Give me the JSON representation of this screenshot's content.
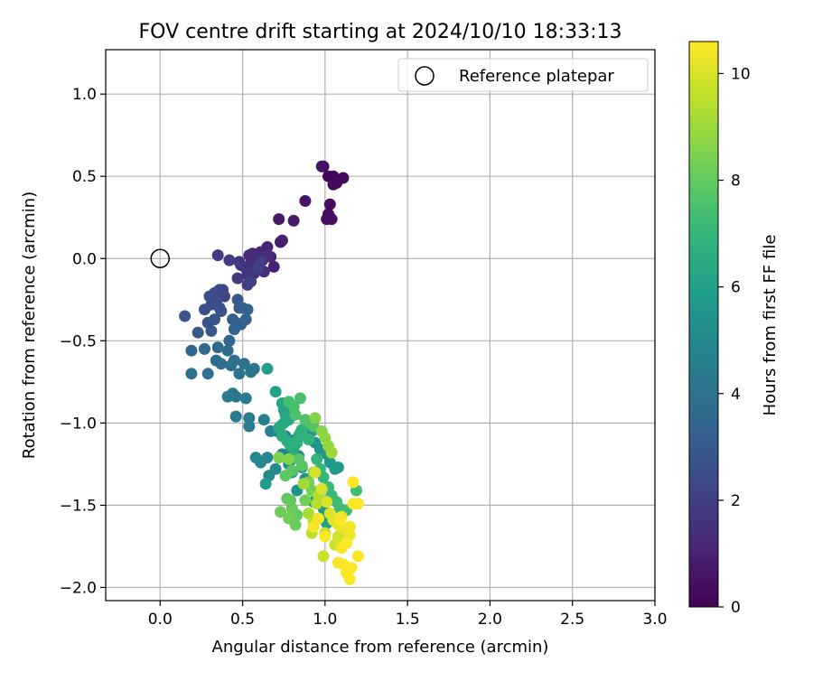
{
  "chart_data": {
    "type": "scatter",
    "title": "FOV centre drift starting at 2024/10/10 18:33:13",
    "xlabel": "Angular distance from reference (arcmin)",
    "ylabel": "Rotation from reference (arcmin)",
    "xlim": [
      -0.33,
      3.0
    ],
    "ylim": [
      -2.08,
      1.27
    ],
    "xticks": [
      0.0,
      0.5,
      1.0,
      1.5,
      2.0,
      2.5,
      3.0
    ],
    "xtick_labels": [
      "0.0",
      "0.5",
      "1.0",
      "1.5",
      "2.0",
      "2.5",
      "3.0"
    ],
    "yticks": [
      -2.0,
      -1.5,
      -1.0,
      -0.5,
      0.0,
      0.5,
      1.0
    ],
    "ytick_labels": [
      "−2.0",
      "−1.5",
      "−1.0",
      "−0.5",
      "0.0",
      "0.5",
      "1.0"
    ],
    "grid": true,
    "legend": {
      "position": "upper right",
      "entries": [
        "Reference platepar"
      ]
    },
    "reference_point": {
      "x": 0.0,
      "y": 0.0
    },
    "colorbar": {
      "label": "Hours from first FF file",
      "range": [
        0,
        10.6
      ],
      "ticks": [
        0,
        2,
        4,
        6,
        8,
        10
      ],
      "tick_labels": [
        "0",
        "2",
        "4",
        "6",
        "8",
        "10"
      ],
      "colormap": "viridis",
      "stops": [
        "#440154",
        "#482878",
        "#3e4989",
        "#31688e",
        "#26828e",
        "#1f9e89",
        "#35b779",
        "#6ece58",
        "#b5de2b",
        "#fde725"
      ]
    },
    "points": [
      [
        0.99,
        0.56,
        0.05
      ],
      [
        1.02,
        0.5,
        0.1
      ],
      [
        1.05,
        0.5,
        0.12
      ],
      [
        1.07,
        0.46,
        0.15
      ],
      [
        1.11,
        0.49,
        0.2
      ],
      [
        1.05,
        0.45,
        0.25
      ],
      [
        1.03,
        0.33,
        0.3
      ],
      [
        1.02,
        0.27,
        0.33
      ],
      [
        1.04,
        0.24,
        0.38
      ],
      [
        1.01,
        0.24,
        0.42
      ],
      [
        1.03,
        0.25,
        0.45
      ],
      [
        0.98,
        0.56,
        0.5
      ],
      [
        0.88,
        0.35,
        0.55
      ],
      [
        0.72,
        0.24,
        0.7
      ],
      [
        0.81,
        0.23,
        0.8
      ],
      [
        0.73,
        0.1,
        0.85
      ],
      [
        0.74,
        0.11,
        0.9
      ],
      [
        0.69,
        -0.05,
        0.95
      ],
      [
        0.65,
        0.07,
        1.0
      ],
      [
        0.67,
        0.01,
        1.05
      ],
      [
        0.61,
        0.04,
        1.1
      ],
      [
        0.62,
        -0.01,
        1.15
      ],
      [
        0.59,
        -0.02,
        1.2
      ],
      [
        0.56,
        0.03,
        1.25
      ],
      [
        0.54,
        0.02,
        1.3
      ],
      [
        0.6,
        -0.03,
        1.32
      ],
      [
        0.65,
        0.02,
        1.35
      ],
      [
        0.63,
        -0.08,
        1.38
      ],
      [
        0.58,
        0.01,
        1.4
      ],
      [
        0.55,
        -0.03,
        1.45
      ],
      [
        0.52,
        -0.06,
        1.5
      ],
      [
        0.49,
        -0.04,
        1.55
      ],
      [
        0.57,
        -0.09,
        1.6
      ],
      [
        0.53,
        -0.1,
        1.65
      ],
      [
        0.47,
        -0.12,
        1.7
      ],
      [
        0.48,
        -0.02,
        1.75
      ],
      [
        0.42,
        -0.01,
        1.8
      ],
      [
        0.35,
        0.02,
        1.85
      ],
      [
        0.53,
        -0.16,
        1.9
      ],
      [
        0.61,
        -0.02,
        1.95
      ],
      [
        0.59,
        -0.06,
        2.0
      ],
      [
        0.55,
        -0.14,
        2.1
      ],
      [
        0.38,
        -0.19,
        2.2
      ],
      [
        0.36,
        -0.19,
        2.25
      ],
      [
        0.39,
        -0.23,
        2.3
      ],
      [
        0.35,
        -0.24,
        2.35
      ],
      [
        0.33,
        -0.21,
        2.4
      ],
      [
        0.31,
        -0.28,
        2.45
      ],
      [
        0.34,
        -0.28,
        2.5
      ],
      [
        0.3,
        -0.23,
        2.55
      ],
      [
        0.27,
        -0.31,
        2.6
      ],
      [
        0.36,
        -0.3,
        2.65
      ],
      [
        0.37,
        -0.32,
        2.7
      ],
      [
        0.29,
        -0.39,
        2.75
      ],
      [
        0.15,
        -0.35,
        2.8
      ],
      [
        0.33,
        -0.37,
        2.85
      ],
      [
        0.31,
        -0.44,
        2.9
      ],
      [
        0.23,
        -0.45,
        2.95
      ],
      [
        0.47,
        -0.25,
        3.0
      ],
      [
        0.48,
        -0.3,
        3.05
      ],
      [
        0.44,
        -0.37,
        3.1
      ],
      [
        0.46,
        -0.39,
        3.15
      ],
      [
        0.49,
        -0.4,
        3.2
      ],
      [
        0.5,
        -0.3,
        3.25
      ],
      [
        0.52,
        -0.37,
        3.3
      ],
      [
        0.53,
        -0.31,
        3.35
      ],
      [
        0.45,
        -0.43,
        3.4
      ],
      [
        0.42,
        -0.5,
        3.45
      ],
      [
        0.19,
        -0.56,
        3.5
      ],
      [
        0.27,
        -0.55,
        3.55
      ],
      [
        0.35,
        -0.54,
        3.6
      ],
      [
        0.41,
        -0.56,
        3.65
      ],
      [
        0.34,
        -0.62,
        3.7
      ],
      [
        0.37,
        -0.64,
        3.75
      ],
      [
        0.45,
        -0.62,
        3.8
      ],
      [
        0.43,
        -0.65,
        3.85
      ],
      [
        0.29,
        -0.7,
        3.9
      ],
      [
        0.19,
        -0.7,
        3.95
      ],
      [
        0.51,
        -0.64,
        4.0
      ],
      [
        0.48,
        -0.7,
        4.05
      ],
      [
        0.55,
        -0.69,
        4.1
      ],
      [
        0.57,
        -0.67,
        4.15
      ],
      [
        0.44,
        -0.82,
        4.2
      ],
      [
        0.46,
        -0.84,
        4.25
      ],
      [
        0.41,
        -0.84,
        4.3
      ],
      [
        0.52,
        -0.85,
        4.35
      ],
      [
        0.46,
        -0.96,
        4.4
      ],
      [
        0.54,
        -0.97,
        4.45
      ],
      [
        0.54,
        -1.02,
        4.5
      ],
      [
        0.63,
        -0.98,
        4.55
      ],
      [
        0.71,
        -1.05,
        4.6
      ],
      [
        0.67,
        -1.05,
        4.65
      ],
      [
        0.76,
        -1.08,
        4.7
      ],
      [
        0.82,
        -1.1,
        4.75
      ],
      [
        0.79,
        -1.17,
        4.8
      ],
      [
        0.74,
        -1.19,
        4.85
      ],
      [
        0.65,
        -1.21,
        4.9
      ],
      [
        0.58,
        -1.21,
        4.95
      ],
      [
        0.61,
        -1.24,
        5.0
      ],
      [
        0.7,
        -1.28,
        5.05
      ],
      [
        0.66,
        -1.32,
        5.1
      ],
      [
        0.78,
        -1.25,
        5.15
      ],
      [
        0.84,
        -1.2,
        5.2
      ],
      [
        0.8,
        -1.3,
        5.25
      ],
      [
        0.86,
        -1.27,
        5.3
      ],
      [
        0.88,
        -1.34,
        5.35
      ],
      [
        0.83,
        -1.41,
        5.4
      ],
      [
        0.92,
        -1.05,
        5.45
      ],
      [
        0.94,
        -1.12,
        5.5
      ],
      [
        0.97,
        -1.16,
        5.55
      ],
      [
        1.01,
        -1.19,
        5.6
      ],
      [
        1.03,
        -1.24,
        5.65
      ],
      [
        1.06,
        -1.28,
        5.7
      ],
      [
        1.08,
        -1.27,
        5.75
      ],
      [
        0.64,
        -1.37,
        5.8
      ],
      [
        0.99,
        -1.52,
        5.85
      ],
      [
        0.97,
        -1.58,
        5.9
      ],
      [
        0.93,
        -1.48,
        5.95
      ],
      [
        1.01,
        -1.61,
        6.0
      ],
      [
        0.65,
        -0.67,
        6.05
      ],
      [
        0.7,
        -0.81,
        6.1
      ],
      [
        0.74,
        -0.88,
        6.15
      ],
      [
        0.75,
        -0.92,
        6.2
      ],
      [
        0.76,
        -0.95,
        6.25
      ],
      [
        0.78,
        -0.98,
        6.3
      ],
      [
        0.75,
        -1.0,
        6.35
      ],
      [
        0.73,
        -1.02,
        6.4
      ],
      [
        0.72,
        -1.03,
        6.45
      ],
      [
        0.74,
        -1.08,
        6.5
      ],
      [
        0.77,
        -1.11,
        6.55
      ],
      [
        0.79,
        -1.14,
        6.6
      ],
      [
        0.81,
        -1.16,
        6.65
      ],
      [
        0.83,
        -1.12,
        6.7
      ],
      [
        0.84,
        -1.08,
        6.75
      ],
      [
        0.85,
        -1.06,
        6.8
      ],
      [
        0.86,
        -1.04,
        6.85
      ],
      [
        0.9,
        -1.1,
        6.9
      ],
      [
        0.95,
        -1.22,
        6.95
      ],
      [
        0.97,
        -1.28,
        7.0
      ],
      [
        0.99,
        -1.33,
        7.05
      ],
      [
        1.02,
        -1.39,
        7.1
      ],
      [
        1.04,
        -1.44,
        7.15
      ],
      [
        1.07,
        -1.48,
        7.2
      ],
      [
        1.09,
        -1.52,
        7.25
      ],
      [
        1.13,
        -1.53,
        7.3
      ],
      [
        1.19,
        -1.41,
        7.35
      ],
      [
        0.78,
        -0.87,
        7.4
      ],
      [
        0.81,
        -0.9,
        7.45
      ],
      [
        0.85,
        -0.85,
        7.5
      ],
      [
        0.82,
        -0.95,
        7.55
      ],
      [
        0.88,
        -0.98,
        7.6
      ],
      [
        0.91,
        -1.0,
        7.65
      ],
      [
        0.93,
        -1.02,
        7.7
      ],
      [
        0.84,
        -1.22,
        7.75
      ],
      [
        0.86,
        -1.26,
        7.8
      ],
      [
        0.8,
        -1.29,
        7.85
      ],
      [
        0.76,
        -1.32,
        7.9
      ],
      [
        0.77,
        -1.46,
        7.95
      ],
      [
        0.79,
        -1.47,
        8.0
      ],
      [
        0.8,
        -1.52,
        8.05
      ],
      [
        0.83,
        -1.56,
        8.1
      ],
      [
        0.82,
        -1.62,
        8.15
      ],
      [
        0.73,
        -1.54,
        8.2
      ],
      [
        0.78,
        -1.58,
        8.25
      ],
      [
        0.88,
        -1.47,
        8.3
      ],
      [
        0.9,
        -1.36,
        8.35
      ],
      [
        0.92,
        -1.41,
        8.4
      ],
      [
        0.93,
        -1.3,
        8.45
      ],
      [
        0.72,
        -1.21,
        8.5
      ],
      [
        0.78,
        -1.22,
        8.55
      ],
      [
        0.94,
        -0.97,
        8.6
      ],
      [
        0.98,
        -1.05,
        8.7
      ],
      [
        1.0,
        -1.09,
        8.8
      ],
      [
        1.02,
        -1.14,
        8.9
      ],
      [
        1.04,
        -1.18,
        9.0
      ],
      [
        0.87,
        -1.37,
        9.1
      ],
      [
        0.9,
        -1.55,
        9.2
      ],
      [
        0.96,
        -1.44,
        9.3
      ],
      [
        0.95,
        -1.49,
        9.4
      ],
      [
        0.93,
        -1.6,
        9.5
      ],
      [
        0.92,
        -1.67,
        9.6
      ],
      [
        1.0,
        -1.67,
        9.7
      ],
      [
        0.99,
        -1.81,
        9.75
      ],
      [
        1.06,
        -1.74,
        9.8
      ],
      [
        1.08,
        -1.69,
        9.85
      ],
      [
        1.1,
        -1.72,
        9.9
      ],
      [
        0.94,
        -1.3,
        9.95
      ],
      [
        0.98,
        -1.4,
        10.0
      ],
      [
        1.01,
        -1.48,
        10.05
      ],
      [
        1.03,
        -1.55,
        10.1
      ],
      [
        1.05,
        -1.59,
        10.15
      ],
      [
        1.08,
        -1.62,
        10.2
      ],
      [
        1.1,
        -1.57,
        10.25
      ],
      [
        1.12,
        -1.64,
        10.3
      ],
      [
        1.15,
        -1.68,
        10.35
      ],
      [
        1.15,
        -1.63,
        10.4
      ],
      [
        0.96,
        -1.58,
        10.45
      ],
      [
        0.93,
        -1.63,
        10.5
      ],
      [
        1.1,
        -1.76,
        10.52
      ],
      [
        1.13,
        -1.73,
        10.55
      ],
      [
        1.17,
        -1.49,
        10.58
      ],
      [
        1.2,
        -1.49,
        10.6
      ],
      [
        1.17,
        -1.36,
        10.6
      ],
      [
        1.11,
        -1.86,
        10.6
      ],
      [
        1.16,
        -1.88,
        10.6
      ],
      [
        1.13,
        -1.91,
        10.6
      ],
      [
        1.15,
        -1.95,
        10.6
      ],
      [
        1.2,
        -1.81,
        10.6
      ],
      [
        1.09,
        -1.59,
        10.6
      ],
      [
        1.0,
        -1.69,
        10.55
      ],
      [
        1.08,
        -1.85,
        10.5
      ]
    ]
  }
}
